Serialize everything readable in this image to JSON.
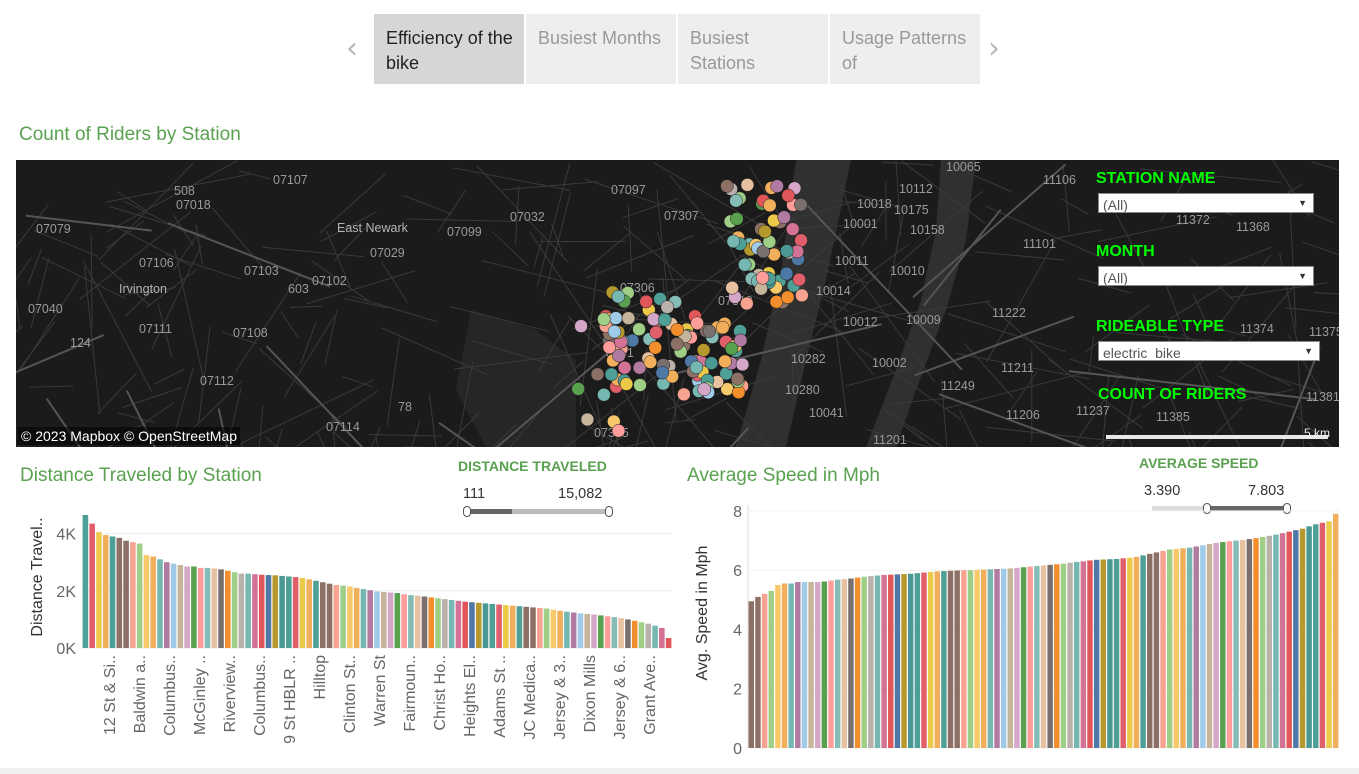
{
  "story": {
    "tabs": [
      {
        "label": "Efficiency of the bike",
        "active": true
      },
      {
        "label": "Busiest Months",
        "active": false
      },
      {
        "label": "Busiest Stations",
        "active": false
      },
      {
        "label": "Usage Patterns of",
        "active": false
      }
    ]
  },
  "map": {
    "title": "Count of Riders by Station",
    "attribution": "© 2023 Mapbox © OpenStreetMap",
    "scale_label": "5 km",
    "zip_labels": [
      "07107",
      "07018",
      "07079",
      "07106",
      "07103",
      "07102",
      "07040",
      "07111",
      "07108",
      "07112",
      "07114",
      "508",
      "603",
      "124",
      "78",
      "07097",
      "07032",
      "07029",
      "07099",
      "07307",
      "07306",
      "07310",
      "0731",
      "07305",
      "10112",
      "10065",
      "10018",
      "10175",
      "10001",
      "10158",
      "10011",
      "10014",
      "10010",
      "10012",
      "10009",
      "10282",
      "10002",
      "10280",
      "10041",
      "11201",
      "11106",
      "11372",
      "11101",
      "11368",
      "11222",
      "11374",
      "11375",
      "11211",
      "11249",
      "11237",
      "11385",
      "11206",
      "11381"
    ],
    "place_labels": [
      "East Newark",
      "Irvington"
    ],
    "filters": [
      {
        "label": "STATION NAME",
        "value": "(All)"
      },
      {
        "label": "MONTH",
        "value": "(All)"
      },
      {
        "label": "RIDEABLE TYPE",
        "value": "electric_bike"
      }
    ],
    "count_label": "COUNT OF RIDERS",
    "accent_color": "#00ff00",
    "background_color": "#1b1b1b"
  },
  "distance_legend": {
    "title": "DISTANCE TRAVELED",
    "min": "111",
    "max": "15,082"
  },
  "speed_legend": {
    "title": "AVERAGE SPEED",
    "min": "3.390",
    "max": "7.803"
  },
  "palette": [
    "#4e9f96",
    "#e15f6b",
    "#edc949",
    "#f1ae5b",
    "#4e9f96",
    "#8c7066",
    "#8c7066",
    "#f7a38f",
    "#9fce86",
    "#f7c96b",
    "#f1ae5b",
    "#76b7b2",
    "#b07aa1",
    "#a0cbe8",
    "#c6b59a",
    "#d4a6c8",
    "#59a14f",
    "#ff9d9a",
    "#86bcb6",
    "#e8c1a0",
    "#79706e",
    "#f28e2b",
    "#9fce86",
    "#bab0ac",
    "#76b7b2",
    "#d37295",
    "#e15759",
    "#4e79a7",
    "#b6992d",
    "#499894"
  ],
  "distance_chart": {
    "title": "Distance Traveled by Station",
    "chart_data": {
      "type": "bar",
      "ylabel": "Distance Travel..",
      "ylim": [
        0,
        5000
      ],
      "yticks": [
        {
          "v": 0,
          "label": "0K"
        },
        {
          "v": 2000,
          "label": "2K"
        },
        {
          "v": 4000,
          "label": "4K"
        }
      ],
      "category_labels": [
        "12 St & Si..",
        "Baldwin a..",
        "Columbus..",
        "McGinley ..",
        "Riverview..",
        "Columbus..",
        "9 St HBLR ..",
        "Hilltop",
        "Clinton St..",
        "Warren St",
        "Fairmoun..",
        "Christ Ho..",
        "Heights El..",
        "Adams St ..",
        "JC Medica..",
        "Jersey & 3..",
        "Dixon Mills",
        "Jersey & 6..",
        "Grant Ave.."
      ],
      "values": [
        4650,
        4350,
        4050,
        3950,
        3900,
        3850,
        3750,
        3700,
        3650,
        3250,
        3200,
        3100,
        3000,
        2950,
        2900,
        2850,
        2850,
        2800,
        2800,
        2780,
        2750,
        2700,
        2650,
        2600,
        2600,
        2580,
        2560,
        2550,
        2540,
        2520,
        2500,
        2480,
        2450,
        2400,
        2350,
        2300,
        2250,
        2200,
        2180,
        2150,
        2100,
        2060,
        2020,
        1980,
        1960,
        1940,
        1920,
        1880,
        1850,
        1830,
        1800,
        1770,
        1740,
        1710,
        1680,
        1650,
        1620,
        1600,
        1580,
        1560,
        1540,
        1520,
        1500,
        1480,
        1460,
        1440,
        1420,
        1400,
        1380,
        1340,
        1300,
        1270,
        1240,
        1210,
        1190,
        1170,
        1140,
        1110,
        1080,
        1040,
        1000,
        950,
        900,
        850,
        780,
        700,
        350
      ]
    }
  },
  "speed_chart": {
    "title": "Average Speed in Mph",
    "chart_data": {
      "type": "bar",
      "ylabel": "Avg. Speed in Mph",
      "ylim": [
        0,
        8.2
      ],
      "yticks": [
        0,
        2,
        4,
        6,
        8
      ],
      "values": [
        4.95,
        5.1,
        5.2,
        5.3,
        5.5,
        5.55,
        5.55,
        5.6,
        5.6,
        5.6,
        5.6,
        5.62,
        5.65,
        5.68,
        5.7,
        5.72,
        5.75,
        5.78,
        5.8,
        5.82,
        5.84,
        5.85,
        5.86,
        5.87,
        5.88,
        5.9,
        5.92,
        5.94,
        5.96,
        5.97,
        5.98,
        5.99,
        6.0,
        6.0,
        6.01,
        6.02,
        6.03,
        6.04,
        6.05,
        6.06,
        6.08,
        6.1,
        6.12,
        6.14,
        6.16,
        6.18,
        6.2,
        6.22,
        6.25,
        6.28,
        6.3,
        6.33,
        6.35,
        6.36,
        6.37,
        6.38,
        6.4,
        6.42,
        6.45,
        6.5,
        6.55,
        6.6,
        6.65,
        6.7,
        6.72,
        6.74,
        6.76,
        6.8,
        6.84,
        6.88,
        6.92,
        6.95,
        6.98,
        7.0,
        7.02,
        7.05,
        7.08,
        7.12,
        7.16,
        7.2,
        7.25,
        7.3,
        7.35,
        7.4,
        7.48,
        7.55,
        7.6,
        7.65,
        7.9
      ]
    }
  }
}
